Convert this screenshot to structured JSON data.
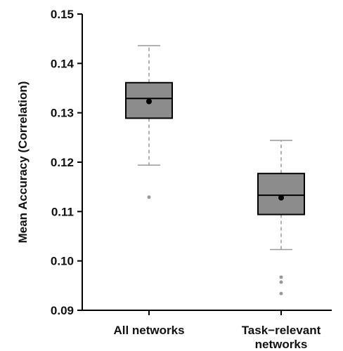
{
  "chart_data": {
    "type": "box",
    "ylabel": "Mean Accuracy (Correlation)",
    "xlabel": "",
    "ylim": [
      0.09,
      0.15
    ],
    "yticks": [
      0.09,
      0.1,
      0.11,
      0.12,
      0.13,
      0.14,
      0.15
    ],
    "ytick_labels": [
      "0.09",
      "0.10",
      "0.11",
      "0.12",
      "0.13",
      "0.14",
      "0.15"
    ],
    "categories": [
      [
        "All networks"
      ],
      [
        "Task−relevant",
        "networks"
      ]
    ],
    "boxes": [
      {
        "whisker_low": 0.1194,
        "q1": 0.1289,
        "median": 0.1329,
        "q3": 0.1361,
        "whisker_high": 0.1436,
        "mean": 0.1323,
        "outliers": [
          0.1129
        ]
      },
      {
        "whisker_low": 0.1023,
        "q1": 0.1094,
        "median": 0.1133,
        "q3": 0.1177,
        "whisker_high": 0.1244,
        "mean": 0.1128,
        "outliers": [
          0.0967,
          0.0957,
          0.0934
        ]
      }
    ],
    "grid": false,
    "legend": "none",
    "colors": {
      "box_fill": "#8c8c8c",
      "box_stroke": "#000000",
      "whisker": "#999999",
      "mean_marker": "#000000",
      "outlier": "#999999",
      "axis": "#000000"
    }
  }
}
